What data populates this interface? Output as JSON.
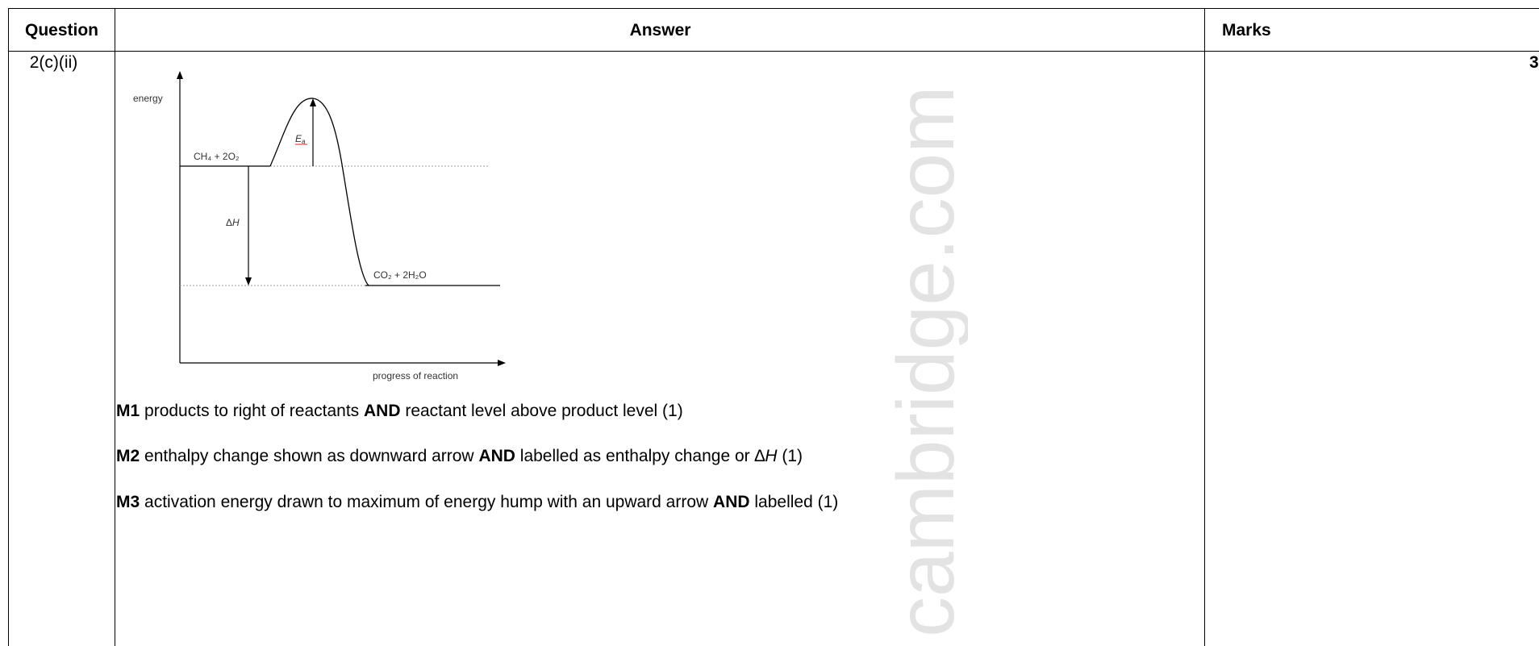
{
  "header": {
    "question": "Question",
    "answer": "Answer",
    "marks": "Marks"
  },
  "row": {
    "question_number": "2(c)(ii)",
    "marks": "3"
  },
  "diagram": {
    "y_axis_label": "energy",
    "x_axis_label": "progress of reaction",
    "reactants": "CH₄ + 2O₂",
    "products": "CO₂ + 2H₂O",
    "enthalpy_label_prefix": "Δ",
    "enthalpy_label_var": "H",
    "activation_label_main": "E",
    "activation_label_sub": "a"
  },
  "marking_points": [
    {
      "code": "M1",
      "t1": " products to right of reactants ",
      "kw": "AND",
      "t2": " reactant level above product level (1)"
    },
    {
      "code": "M2",
      "t1": " enthalpy change shown as downward arrow ",
      "kw": "AND",
      "t2": " labelled as enthalpy change or ∆",
      "var": "H",
      "t3": " (1)"
    },
    {
      "code": "M3",
      "t1": " activation energy drawn to maximum of energy hump with an upward arrow ",
      "kw": "AND",
      "t2": " labelled (1)"
    }
  ],
  "watermark": {
    "text": "cambridge.com",
    "color": "#e3e3e3"
  }
}
